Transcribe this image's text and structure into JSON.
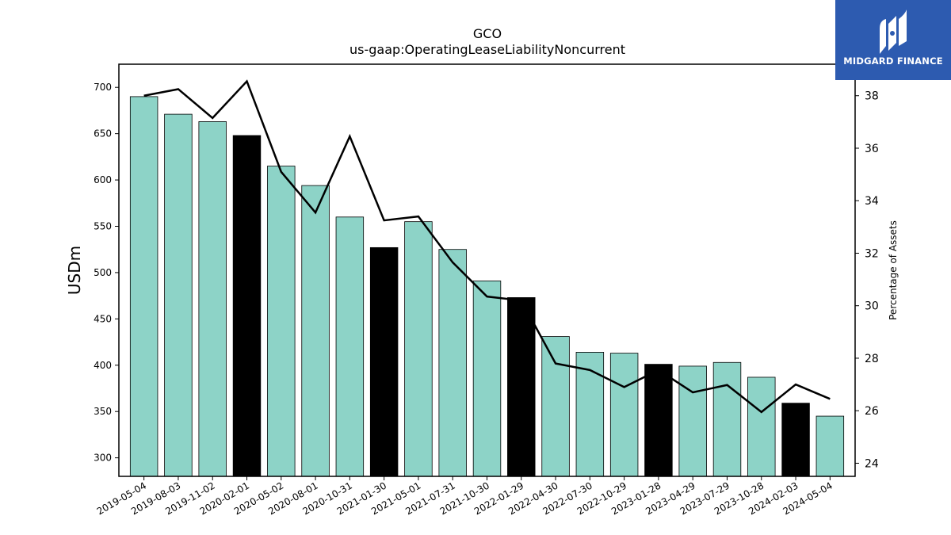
{
  "brand": {
    "name": "MIDGARD FINANCE",
    "color": "#2d5bb0",
    "icon": "midgard-logo-icon"
  },
  "chart_data": {
    "type": "bar",
    "title": "GCO",
    "subtitle": "us-gaap:OperatingLeaseLiabilityNoncurrent",
    "ylabel": "USDm",
    "ylabel_right": "Percentage of Assets",
    "ylim": [
      280,
      725
    ],
    "ylim_right": [
      23.5,
      39.2
    ],
    "yticks": [
      300,
      350,
      400,
      450,
      500,
      550,
      600,
      650,
      700
    ],
    "yticks_right": [
      24,
      26,
      28,
      30,
      32,
      34,
      36,
      38
    ],
    "categories": [
      "2019-05-04",
      "2019-08-03",
      "2019-11-02",
      "2020-02-01",
      "2020-05-02",
      "2020-08-01",
      "2020-10-31",
      "2021-01-30",
      "2021-05-01",
      "2021-07-31",
      "2021-10-30",
      "2022-01-29",
      "2022-04-30",
      "2022-07-30",
      "2022-10-29",
      "2023-01-28",
      "2023-04-29",
      "2023-07-29",
      "2023-10-28",
      "2024-02-03",
      "2024-05-04"
    ],
    "series": [
      {
        "kind": "bar",
        "axis": "left",
        "values": [
          690,
          671,
          663,
          648,
          615,
          594,
          560,
          527,
          555,
          525,
          491,
          473,
          431,
          414,
          413,
          401,
          399,
          403,
          387,
          359,
          345
        ],
        "colors": [
          "#8dd3c7",
          "#8dd3c7",
          "#8dd3c7",
          "#000000",
          "#8dd3c7",
          "#8dd3c7",
          "#8dd3c7",
          "#000000",
          "#8dd3c7",
          "#8dd3c7",
          "#8dd3c7",
          "#000000",
          "#8dd3c7",
          "#8dd3c7",
          "#8dd3c7",
          "#000000",
          "#8dd3c7",
          "#8dd3c7",
          "#8dd3c7",
          "#000000",
          "#8dd3c7"
        ]
      },
      {
        "kind": "line",
        "axis": "right",
        "color": "#000000",
        "values": [
          38.0,
          38.25,
          37.15,
          38.55,
          35.1,
          33.55,
          36.45,
          33.25,
          33.4,
          31.65,
          30.35,
          30.2,
          27.8,
          27.55,
          26.9,
          27.55,
          26.7,
          26.98,
          25.95,
          27.0,
          26.45
        ]
      }
    ],
    "grid": false,
    "legend": "none"
  }
}
